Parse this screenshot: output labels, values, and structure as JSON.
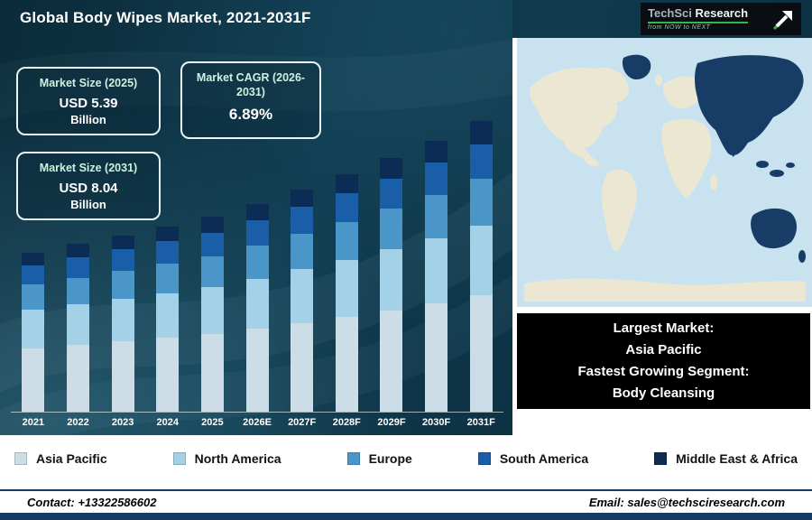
{
  "header": {
    "title": "Global Body Wipes Market, 2021-2031F",
    "logo": {
      "brand_primary": "TechSci",
      "brand_secondary": " Research",
      "tagline": "from NOW to NEXT",
      "accent_color": "#35b54a"
    }
  },
  "cards": [
    {
      "label": "Market Size (2025)",
      "value": "USD 5.39",
      "unit": "Billion"
    },
    {
      "label": "Market CAGR (2026-2031)",
      "value": "6.89%",
      "unit": ""
    },
    {
      "label": "Market Size (2031)",
      "value": "USD 8.04",
      "unit": "Billion"
    }
  ],
  "chart_data": {
    "type": "bar",
    "stacked": true,
    "title": "Global Body Wipes Market, 2021-2031F",
    "unit": "USD Billion",
    "categories": [
      "2021",
      "2022",
      "2023",
      "2024",
      "2025",
      "2026E",
      "2027F",
      "2028F",
      "2029F",
      "2030F",
      "2031F"
    ],
    "series": [
      {
        "name": "Asia Pacific",
        "color": "#ccdde8",
        "values": [
          1.76,
          1.86,
          1.95,
          2.05,
          2.16,
          2.3,
          2.46,
          2.63,
          2.81,
          3.01,
          3.22
        ]
      },
      {
        "name": "North America",
        "color": "#a3d1e8",
        "values": [
          1.06,
          1.11,
          1.17,
          1.23,
          1.29,
          1.38,
          1.48,
          1.58,
          1.69,
          1.8,
          1.93
        ]
      },
      {
        "name": "Europe",
        "color": "#4a96c8",
        "values": [
          0.7,
          0.74,
          0.78,
          0.82,
          0.86,
          0.92,
          0.99,
          1.05,
          1.12,
          1.2,
          1.29
        ]
      },
      {
        "name": "South America",
        "color": "#1b5ea8",
        "values": [
          0.53,
          0.56,
          0.59,
          0.62,
          0.65,
          0.69,
          0.74,
          0.79,
          0.84,
          0.9,
          0.96
        ]
      },
      {
        "name": "Middle East & Africa",
        "color": "#0c2b55",
        "values": [
          0.35,
          0.37,
          0.39,
          0.41,
          0.43,
          0.46,
          0.49,
          0.53,
          0.56,
          0.6,
          0.64
        ]
      }
    ],
    "totals_note": "2025 total = 5.39, 2031 total = 8.04 (USD Billion)",
    "ylim": [
      0,
      8.5
    ],
    "grid": false,
    "legend_position": "bottom"
  },
  "legend": [
    {
      "label": "Asia Pacific",
      "color": "#ccdde8"
    },
    {
      "label": "North America",
      "color": "#a3d1e8"
    },
    {
      "label": "Europe",
      "color": "#4a96c8"
    },
    {
      "label": "South America",
      "color": "#1b5ea8"
    },
    {
      "label": "Middle East & Africa",
      "color": "#0c2b55"
    }
  ],
  "map": {
    "sea_color": "#c8e2ef",
    "land_color": "#ece7d3",
    "highlight_color": "#173c66"
  },
  "highlight_box": {
    "lines": [
      "Largest Market:",
      "Asia Pacific",
      "Fastest Growing Segment:",
      "Body Cleansing"
    ]
  },
  "footer": {
    "contact": "Contact: +13322586602",
    "email": "Email: sales@techsciresearch.com"
  }
}
